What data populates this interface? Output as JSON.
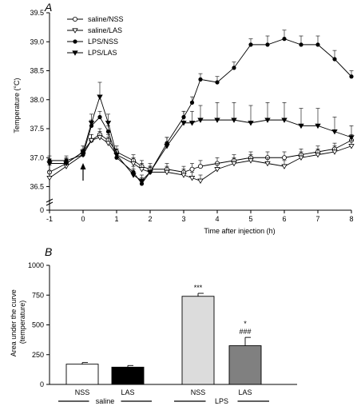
{
  "chart_data": [
    {
      "panel": "A",
      "type": "line",
      "xlabel": "Time after injection (h)",
      "ylabel": "Temperature (°C)",
      "xlim": [
        -1,
        8
      ],
      "ylim": [
        36.3,
        39.5
      ],
      "x_ticks": [
        "-1",
        "0",
        "1",
        "2",
        "3",
        "4",
        "5",
        "6",
        "7",
        "8"
      ],
      "y_ticks": [
        "36.5",
        "37.0",
        "37.5",
        "38.0",
        "38.5",
        "39.0",
        "39.5"
      ],
      "y_zero_label": "0",
      "axis_break": true,
      "injection_marker_x": 0,
      "legend_position": "top-left",
      "legend": [
        "saline/NSS",
        "saline/LAS",
        "LPS/NSS",
        "LPS/LAS"
      ],
      "x": [
        -1,
        -0.5,
        0,
        0.25,
        0.5,
        0.75,
        1,
        1.5,
        1.75,
        2,
        2.5,
        3,
        3.25,
        3.5,
        4,
        4.5,
        5,
        5.5,
        6,
        6.5,
        7,
        7.5,
        8
      ],
      "series": [
        {
          "name": "saline/NSS",
          "marker": "open-circle",
          "values": [
            36.75,
            36.9,
            37.1,
            37.3,
            37.4,
            37.3,
            37.1,
            36.95,
            36.85,
            36.8,
            36.8,
            36.75,
            36.8,
            36.85,
            36.9,
            36.95,
            37.0,
            37.0,
            37.0,
            37.05,
            37.1,
            37.15,
            37.3
          ],
          "err": [
            0.12,
            0.1,
            0.1,
            0.1,
            0.1,
            0.1,
            0.1,
            0.1,
            0.1,
            0.1,
            0.1,
            0.1,
            0.1,
            0.1,
            0.1,
            0.1,
            0.1,
            0.1,
            0.1,
            0.1,
            0.1,
            0.1,
            0.1
          ]
        },
        {
          "name": "saline/LAS",
          "marker": "open-triangle-down",
          "values": [
            36.65,
            36.85,
            37.05,
            37.3,
            37.35,
            37.25,
            37.05,
            36.9,
            36.8,
            36.75,
            36.75,
            36.7,
            36.65,
            36.6,
            36.8,
            36.9,
            36.95,
            36.9,
            36.85,
            37.0,
            37.05,
            37.1,
            37.2
          ],
          "err": [
            0.12,
            0.1,
            0.1,
            0.1,
            0.1,
            0.1,
            0.1,
            0.1,
            0.1,
            0.1,
            0.1,
            0.1,
            0.1,
            0.1,
            0.1,
            0.1,
            0.1,
            0.1,
            0.1,
            0.1,
            0.1,
            0.1,
            0.1
          ]
        },
        {
          "name": "LPS/NSS",
          "marker": "filled-circle",
          "values": [
            36.95,
            36.95,
            37.05,
            37.55,
            37.7,
            37.45,
            37.0,
            36.75,
            36.55,
            36.75,
            37.25,
            37.7,
            37.95,
            38.35,
            38.3,
            38.55,
            38.95,
            38.95,
            39.05,
            38.95,
            38.95,
            38.7,
            38.4
          ],
          "err": [
            0.08,
            0.08,
            0.08,
            0.1,
            0.1,
            0.1,
            0.1,
            0.1,
            0.1,
            0.1,
            0.1,
            0.1,
            0.1,
            0.1,
            0.1,
            0.1,
            0.1,
            0.15,
            0.15,
            0.15,
            0.15,
            0.15,
            0.1
          ]
        },
        {
          "name": "LPS/LAS",
          "marker": "filled-triangle-down",
          "values": [
            36.9,
            36.9,
            37.1,
            37.6,
            38.05,
            37.6,
            37.05,
            36.7,
            36.6,
            36.75,
            37.2,
            37.6,
            37.6,
            37.65,
            37.65,
            37.65,
            37.6,
            37.65,
            37.65,
            37.55,
            37.55,
            37.45,
            37.35
          ],
          "err": [
            0.08,
            0.08,
            0.1,
            0.15,
            0.25,
            0.15,
            0.1,
            0.1,
            0.1,
            0.1,
            0.15,
            0.2,
            0.2,
            0.25,
            0.3,
            0.3,
            0.3,
            0.3,
            0.3,
            0.3,
            0.3,
            0.25,
            0.2
          ]
        }
      ]
    },
    {
      "panel": "B",
      "type": "bar",
      "ylabel": "Area under the curve\n(temperature)",
      "ylim": [
        0,
        1000
      ],
      "y_ticks": [
        "0",
        "250",
        "500",
        "750",
        "1000"
      ],
      "categories": [
        "NSS",
        "LAS",
        "NSS",
        "LAS"
      ],
      "groups": [
        {
          "label": "saline",
          "members": [
            0,
            1
          ]
        },
        {
          "label": "LPS",
          "members": [
            2,
            3
          ]
        }
      ],
      "values": [
        170,
        145,
        740,
        325
      ],
      "errors": [
        14,
        14,
        25,
        70
      ],
      "colors": [
        "#ffffff",
        "#000000",
        "#dcdcdc",
        "#808080"
      ],
      "annotations": [
        [],
        [],
        [
          "***"
        ],
        [
          "*",
          "###"
        ]
      ]
    }
  ]
}
